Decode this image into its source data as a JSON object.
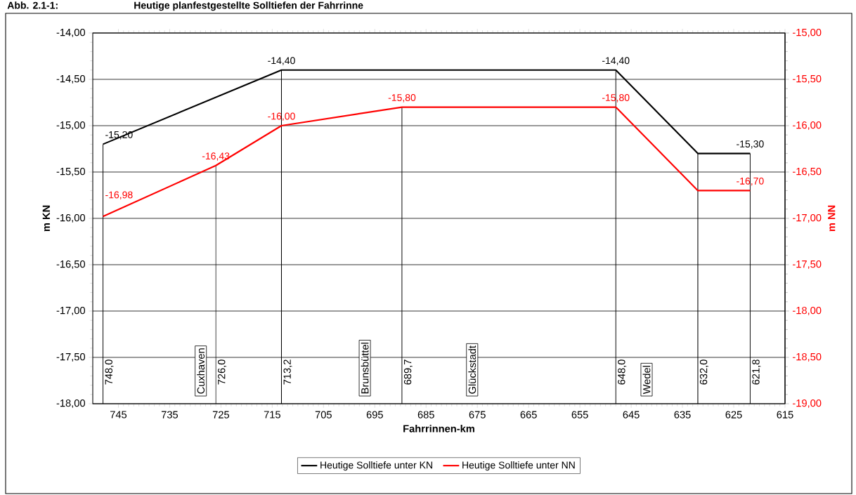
{
  "chart_data": {
    "type": "line",
    "title": "Heutige planfestgestellte Solltiefen der Fahrrinne",
    "annotations": [
      "Abb. 2.1-1:",
      "Cuxhaven",
      "Brunsbüttel",
      "Glückstadt",
      "Wedel"
    ],
    "xlabel": "Fahrrinnen-km",
    "ylabel": "m KN",
    "y2label": "m NN",
    "xlim": [
      750,
      615
    ],
    "xticks": [
      745,
      735,
      725,
      715,
      705,
      695,
      685,
      675,
      665,
      655,
      645,
      635,
      625,
      615
    ],
    "ylim": [
      -18,
      -14
    ],
    "yticks": [
      {
        "value": -18,
        "label": "-18,00"
      },
      {
        "value": -17.5,
        "label": "-17,50"
      },
      {
        "value": -17,
        "label": "-17,00"
      },
      {
        "value": -16.5,
        "label": "-16,50"
      },
      {
        "value": -16,
        "label": "-16,00"
      },
      {
        "value": -15.5,
        "label": "-15,50"
      },
      {
        "value": -15,
        "label": "-15,00"
      },
      {
        "value": -14.5,
        "label": "-14,50"
      },
      {
        "value": -14,
        "label": "-14,00"
      }
    ],
    "y2lim": [
      -19,
      -15
    ],
    "y2ticks": [
      {
        "value": -19,
        "label": "-19,00"
      },
      {
        "value": -18.5,
        "label": "-18,50"
      },
      {
        "value": -18,
        "label": "-18,00"
      },
      {
        "value": -17.5,
        "label": "-17,50"
      },
      {
        "value": -17,
        "label": "-17,00"
      },
      {
        "value": -16.5,
        "label": "-16,50"
      },
      {
        "value": -16,
        "label": "-16,00"
      },
      {
        "value": -15.5,
        "label": "-15,50"
      },
      {
        "value": -15,
        "label": "-15,00"
      }
    ],
    "grid": "y",
    "legend": "bottom",
    "series": [
      {
        "name": "Heutige Solltiefe unter KN",
        "color": "#000000",
        "x": [
          748,
          713.2,
          648,
          632,
          621.8
        ],
        "values": [
          -15.2,
          -14.4,
          -14.4,
          -15.3,
          -15.3
        ],
        "value_labels": [
          "-15,20",
          "-14,40",
          "-14,40",
          null,
          "-15,30"
        ]
      },
      {
        "name": "Heutige Solltiefe unter NN",
        "color": "#ff0000",
        "axis": "y2",
        "x": [
          748,
          726,
          713.2,
          689.7,
          648,
          632,
          621.8
        ],
        "values": [
          -16.98,
          -16.43,
          -16.0,
          -15.8,
          -15.8,
          -16.7,
          -16.7
        ],
        "value_labels": [
          "-16,98",
          "-16,43",
          "-16,00",
          "-15,80",
          "-15,80",
          null,
          "-16,70"
        ]
      }
    ],
    "ref_lines": [
      {
        "axis": "x",
        "value": 748,
        "label": "748,0"
      },
      {
        "axis": "x",
        "value": 726,
        "label": "726,0"
      },
      {
        "axis": "x",
        "value": 713.2,
        "label": "713,2"
      },
      {
        "axis": "x",
        "value": 689.7,
        "label": "689,7"
      },
      {
        "axis": "x",
        "value": 648,
        "label": "648,0"
      },
      {
        "axis": "x",
        "value": 632,
        "label": "632,0"
      },
      {
        "axis": "x",
        "value": 621.8,
        "label": "621,8"
      }
    ]
  }
}
